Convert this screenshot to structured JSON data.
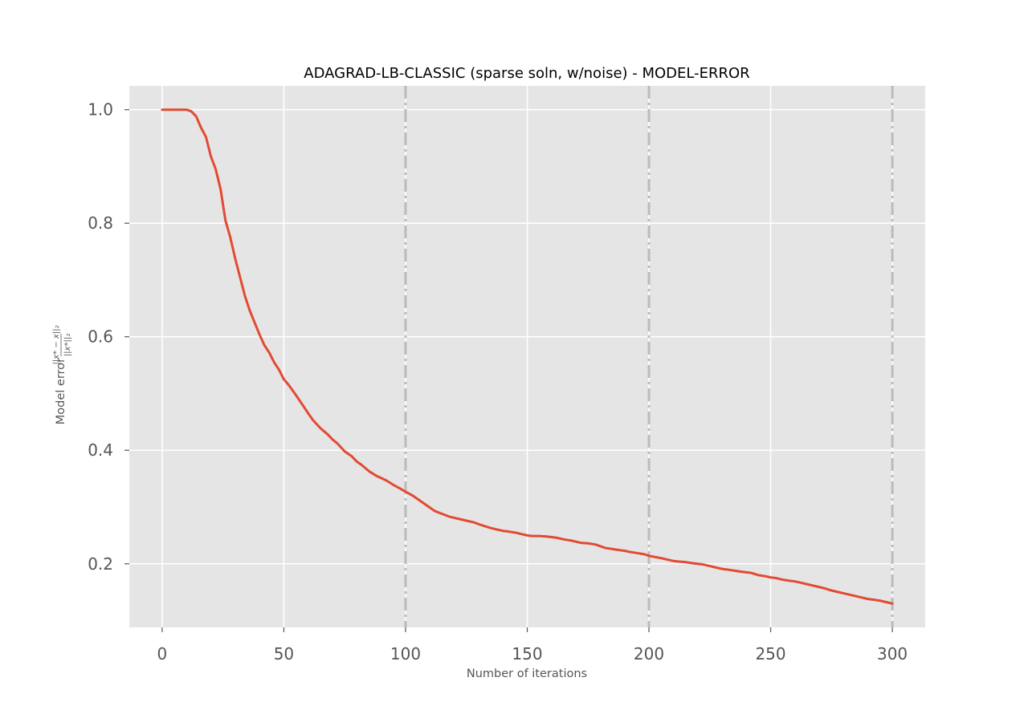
{
  "chart_data": {
    "type": "line",
    "title": "ADAGRAD-LB-CLASSIC (sparse soln, w/noise) - MODEL-ERROR",
    "xlabel": "Number of iterations",
    "ylabel": "Model error",
    "ylabel_numerator": "||x* − x||₂",
    "ylabel_denominator": "||x*||₂",
    "xlim": [
      -13.5,
      313.5
    ],
    "ylim": [
      0.088,
      1.042
    ],
    "x_ticks": [
      0,
      50,
      100,
      150,
      200,
      250,
      300
    ],
    "x_tick_labels": [
      "0",
      "50",
      "100",
      "150",
      "200",
      "250",
      "300"
    ],
    "y_ticks": [
      0.2,
      0.4,
      0.6,
      0.8,
      1.0
    ],
    "y_tick_labels": [
      "0.2",
      "0.4",
      "0.6",
      "0.8",
      "1.0"
    ],
    "vertical_lines": [
      100,
      200,
      300
    ],
    "grid": true,
    "colors": {
      "line": "#E24A33",
      "background": "#E5E5E5",
      "grid": "#FFFFFF",
      "vline": "#BBBBBB"
    },
    "series": [
      {
        "x": [
          0,
          5,
          10,
          12,
          14,
          16,
          18,
          20,
          22,
          24,
          26,
          28,
          30,
          32,
          34,
          36,
          38,
          40,
          42,
          44,
          46,
          48,
          50,
          52,
          55,
          58,
          60,
          62,
          65,
          68,
          70,
          72,
          75,
          78,
          80,
          82,
          85,
          88,
          90,
          92,
          95,
          98,
          100,
          103,
          105,
          108,
          110,
          112,
          115,
          118,
          120,
          122,
          125,
          128,
          130,
          132,
          135,
          138,
          140,
          142,
          145,
          148,
          150,
          152,
          155,
          158,
          160,
          162,
          165,
          168,
          170,
          172,
          175,
          178,
          180,
          182,
          185,
          188,
          190,
          192,
          195,
          198,
          200,
          205,
          210,
          212,
          215,
          218,
          220,
          222,
          225,
          228,
          230,
          232,
          235,
          238,
          240,
          242,
          245,
          248,
          250,
          252,
          255,
          258,
          260,
          262,
          265,
          268,
          270,
          272,
          275,
          278,
          280,
          282,
          285,
          288,
          290,
          292,
          295,
          298,
          300
        ],
        "y": [
          1.0,
          1.0,
          1.0,
          0.997,
          0.988,
          0.968,
          0.952,
          0.918,
          0.895,
          0.86,
          0.805,
          0.775,
          0.738,
          0.705,
          0.672,
          0.646,
          0.625,
          0.604,
          0.585,
          0.572,
          0.555,
          0.542,
          0.525,
          0.515,
          0.497,
          0.478,
          0.465,
          0.453,
          0.439,
          0.428,
          0.419,
          0.412,
          0.398,
          0.389,
          0.38,
          0.374,
          0.363,
          0.355,
          0.351,
          0.347,
          0.339,
          0.332,
          0.327,
          0.32,
          0.314,
          0.305,
          0.299,
          0.293,
          0.288,
          0.283,
          0.281,
          0.279,
          0.276,
          0.273,
          0.27,
          0.267,
          0.263,
          0.26,
          0.258,
          0.257,
          0.255,
          0.252,
          0.25,
          0.249,
          0.249,
          0.248,
          0.247,
          0.246,
          0.243,
          0.241,
          0.239,
          0.237,
          0.236,
          0.234,
          0.231,
          0.228,
          0.226,
          0.224,
          0.223,
          0.221,
          0.219,
          0.217,
          0.214,
          0.21,
          0.205,
          0.204,
          0.203,
          0.201,
          0.2,
          0.199,
          0.196,
          0.193,
          0.191,
          0.19,
          0.188,
          0.186,
          0.185,
          0.184,
          0.18,
          0.178,
          0.176,
          0.175,
          0.172,
          0.17,
          0.169,
          0.167,
          0.164,
          0.161,
          0.159,
          0.157,
          0.153,
          0.15,
          0.148,
          0.146,
          0.143,
          0.14,
          0.138,
          0.137,
          0.135,
          0.132,
          0.13
        ]
      }
    ]
  }
}
